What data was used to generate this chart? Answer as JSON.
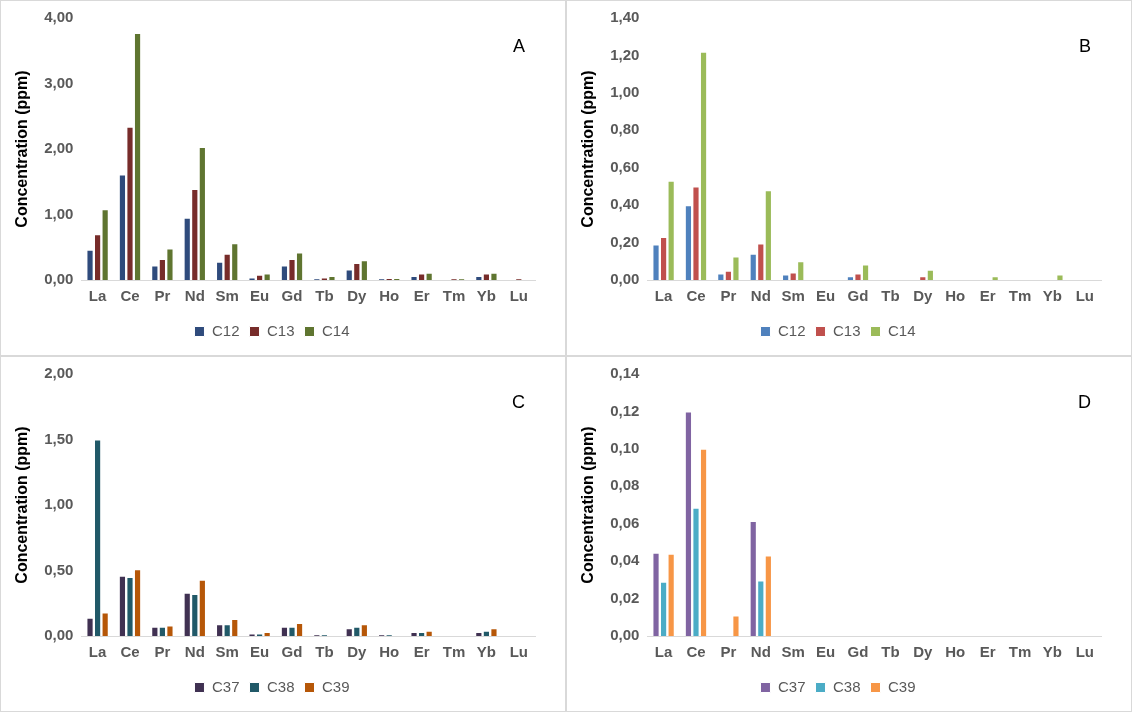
{
  "chart_data": [
    {
      "type": "bar",
      "ylabel": "Concentration (ppm)",
      "annotations": [
        "A"
      ],
      "categories": [
        "La",
        "Ce",
        "Pr",
        "Nd",
        "Sm",
        "Eu",
        "Gd",
        "Tb",
        "Dy",
        "Ho",
        "Er",
        "Tm",
        "Yb",
        "Lu"
      ],
      "series": [
        {
          "name": "C12",
          "color": "#2f4b7c",
          "values": [
            0.46,
            1.61,
            0.22,
            0.95,
            0.28,
            0.04,
            0.22,
            0.02,
            0.16,
            0.02,
            0.06,
            0,
            0.06,
            0
          ]
        },
        {
          "name": "C13",
          "color": "#772c2a",
          "values": [
            0.7,
            2.34,
            0.32,
            1.39,
            0.4,
            0.08,
            0.32,
            0.04,
            0.26,
            0.03,
            0.1,
            0.02,
            0.1,
            0.02
          ]
        },
        {
          "name": "C14",
          "color": "#5f7530",
          "values": [
            1.08,
            3.77,
            0.48,
            2.03,
            0.56,
            0.1,
            0.42,
            0.06,
            0.3,
            0.03,
            0.11,
            0.02,
            0.11,
            0
          ]
        }
      ],
      "ylim": [
        0,
        4
      ],
      "yticks": [
        {
          "value": 0,
          "label": "0,00"
        },
        {
          "value": 1,
          "label": "1,00"
        },
        {
          "value": 2,
          "label": "2,00"
        },
        {
          "value": 3,
          "label": "3,00"
        },
        {
          "value": 4,
          "label": "4,00"
        }
      ],
      "grid": false,
      "legend": "bottom"
    },
    {
      "type": "bar",
      "ylabel": "Concentration (ppm)",
      "annotations": [
        "B"
      ],
      "categories": [
        "La",
        "Ce",
        "Pr",
        "Nd",
        "Sm",
        "Eu",
        "Gd",
        "Tb",
        "Dy",
        "Ho",
        "Er",
        "Tm",
        "Yb",
        "Lu"
      ],
      "series": [
        {
          "name": "C12",
          "color": "#4f81bd",
          "values": [
            0.19,
            0.4,
            0.035,
            0.14,
            0.03,
            0,
            0.02,
            0,
            0,
            0,
            0,
            0,
            0,
            0
          ]
        },
        {
          "name": "C13",
          "color": "#c0504d",
          "values": [
            0.23,
            0.5,
            0.05,
            0.195,
            0.04,
            0,
            0.035,
            0,
            0.02,
            0,
            0,
            0,
            0,
            0
          ]
        },
        {
          "name": "C14",
          "color": "#9bbb59",
          "values": [
            0.53,
            1.22,
            0.125,
            0.48,
            0.1,
            0,
            0.083,
            0,
            0.055,
            0,
            0.02,
            0,
            0.03,
            0
          ]
        }
      ],
      "ylim": [
        0,
        1.4
      ],
      "yticks": [
        {
          "value": 0,
          "label": "0,00"
        },
        {
          "value": 0.2,
          "label": "0,20"
        },
        {
          "value": 0.4,
          "label": "0,40"
        },
        {
          "value": 0.6,
          "label": "0,60"
        },
        {
          "value": 0.8,
          "label": "0,80"
        },
        {
          "value": 1,
          "label": "1,00"
        },
        {
          "value": 1.2,
          "label": "1,20"
        },
        {
          "value": 1.4,
          "label": "1,40"
        }
      ],
      "grid": false,
      "legend": "bottom"
    },
    {
      "type": "bar",
      "ylabel": "Concentration (ppm)",
      "annotations": [
        "C"
      ],
      "categories": [
        "La",
        "Ce",
        "Pr",
        "Nd",
        "Sm",
        "Eu",
        "Gd",
        "Tb",
        "Dy",
        "Ho",
        "Er",
        "Tm",
        "Yb",
        "Lu"
      ],
      "series": [
        {
          "name": "C37",
          "color": "#403152",
          "values": [
            0.14,
            0.46,
            0.07,
            0.33,
            0.09,
            0.02,
            0.07,
            0.01,
            0.06,
            0.01,
            0.03,
            0,
            0.03,
            0
          ]
        },
        {
          "name": "C38",
          "color": "#215968",
          "values": [
            1.5,
            0.45,
            0.07,
            0.32,
            0.09,
            0.02,
            0.07,
            0.01,
            0.07,
            0.01,
            0.03,
            0,
            0.04,
            0
          ]
        },
        {
          "name": "C39",
          "color": "#b65708",
          "values": [
            0.18,
            0.51,
            0.08,
            0.43,
            0.13,
            0.03,
            0.1,
            0,
            0.09,
            0,
            0.04,
            0,
            0.06,
            0
          ]
        }
      ],
      "ylim": [
        0,
        2
      ],
      "yticks": [
        {
          "value": 0,
          "label": "0,00"
        },
        {
          "value": 0.5,
          "label": "0,50"
        },
        {
          "value": 1,
          "label": "1,00"
        },
        {
          "value": 1.5,
          "label": "1,50"
        },
        {
          "value": 2,
          "label": "2,00"
        }
      ],
      "grid": false,
      "legend": "bottom"
    },
    {
      "type": "bar",
      "ylabel": "Concentration (ppm)",
      "annotations": [
        "D"
      ],
      "categories": [
        "La",
        "Ce",
        "Pr",
        "Nd",
        "Sm",
        "Eu",
        "Gd",
        "Tb",
        "Dy",
        "Ho",
        "Er",
        "Tm",
        "Yb",
        "Lu"
      ],
      "series": [
        {
          "name": "C37",
          "color": "#8064a2",
          "values": [
            0.0445,
            0.12,
            0,
            0.0614,
            0,
            0,
            0,
            0,
            0,
            0,
            0,
            0,
            0,
            0
          ]
        },
        {
          "name": "C38",
          "color": "#4bacc6",
          "values": [
            0.029,
            0.0685,
            0,
            0.0297,
            0,
            0,
            0,
            0,
            0,
            0,
            0,
            0,
            0,
            0
          ]
        },
        {
          "name": "C39",
          "color": "#f79646",
          "values": [
            0.044,
            0.1,
            0.011,
            0.043,
            0,
            0,
            0,
            0,
            0,
            0,
            0,
            0,
            0,
            0
          ]
        }
      ],
      "ylim": [
        0,
        0.14
      ],
      "yticks": [
        {
          "value": 0,
          "label": "0,00"
        },
        {
          "value": 0.02,
          "label": "0,02"
        },
        {
          "value": 0.04,
          "label": "0,04"
        },
        {
          "value": 0.06,
          "label": "0,06"
        },
        {
          "value": 0.08,
          "label": "0,08"
        },
        {
          "value": 0.1,
          "label": "0,10"
        },
        {
          "value": 0.12,
          "label": "0,12"
        },
        {
          "value": 0.14,
          "label": "0,14"
        }
      ],
      "grid": false,
      "legend": "bottom"
    }
  ]
}
